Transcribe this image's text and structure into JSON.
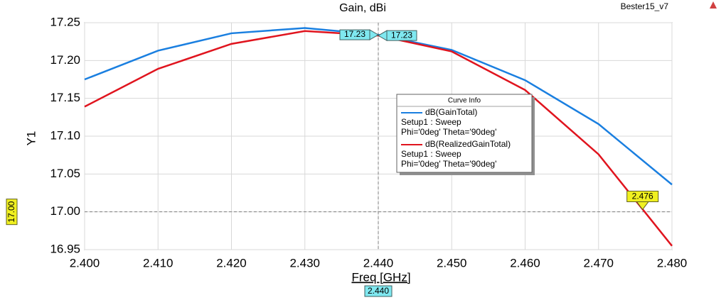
{
  "chart_data": {
    "type": "line",
    "title": "Gain, dBi",
    "corner_text": "Bester15_v7",
    "xlabel": "Freq [GHz]",
    "ylabel": "Y1",
    "x": [
      2.4,
      2.41,
      2.42,
      2.43,
      2.44,
      2.45,
      2.46,
      2.47,
      2.48
    ],
    "series": [
      {
        "name": "dB(GainTotal)",
        "color": "#1a7fe0",
        "detail": [
          "Setup1 : Sweep",
          "Phi='0deg' Theta='90deg'"
        ],
        "values": [
          17.175,
          17.213,
          17.236,
          17.243,
          17.234,
          17.214,
          17.174,
          17.116,
          17.036
        ]
      },
      {
        "name": "dB(RealizedGainTotal)",
        "color": "#e0141e",
        "detail": [
          "Setup1 : Sweep",
          "Phi='0deg' Theta='90deg'"
        ],
        "values": [
          17.139,
          17.189,
          17.222,
          17.239,
          17.233,
          17.212,
          17.161,
          17.076,
          16.955
        ]
      }
    ],
    "legend_title": "Curve Info",
    "xlim": [
      2.4,
      2.48
    ],
    "xticks": [
      {
        "value": 2.4,
        "label": "2.400"
      },
      {
        "value": 2.41,
        "label": "2.410"
      },
      {
        "value": 2.42,
        "label": "2.420"
      },
      {
        "value": 2.43,
        "label": "2.430"
      },
      {
        "value": 2.44,
        "label": "2.440"
      },
      {
        "value": 2.45,
        "label": "2.450"
      },
      {
        "value": 2.46,
        "label": "2.460"
      },
      {
        "value": 2.47,
        "label": "2.470"
      },
      {
        "value": 2.48,
        "label": "2.480"
      }
    ],
    "ylim": [
      16.95,
      17.25
    ],
    "yticks": [
      16.95,
      {
        "value": 17.0,
        "label": "17.00"
      },
      17.05,
      {
        "value": 17.1,
        "label": "17.10"
      },
      17.15,
      {
        "value": 17.2,
        "label": "17.20"
      },
      17.25
    ],
    "grid": true,
    "x_cursor": {
      "value": 2.44,
      "label": "2.440"
    },
    "y_cursor": {
      "value": 17.0,
      "label": "17.00"
    },
    "annotations": [
      {
        "x": 2.44,
        "y": 17.234,
        "label": "17.23",
        "side": "left"
      },
      {
        "x": 2.44,
        "y": 17.233,
        "label": "17.23",
        "side": "right"
      },
      {
        "x": 2.476,
        "y": 17.003,
        "label": "2.476",
        "side": "above"
      }
    ]
  }
}
